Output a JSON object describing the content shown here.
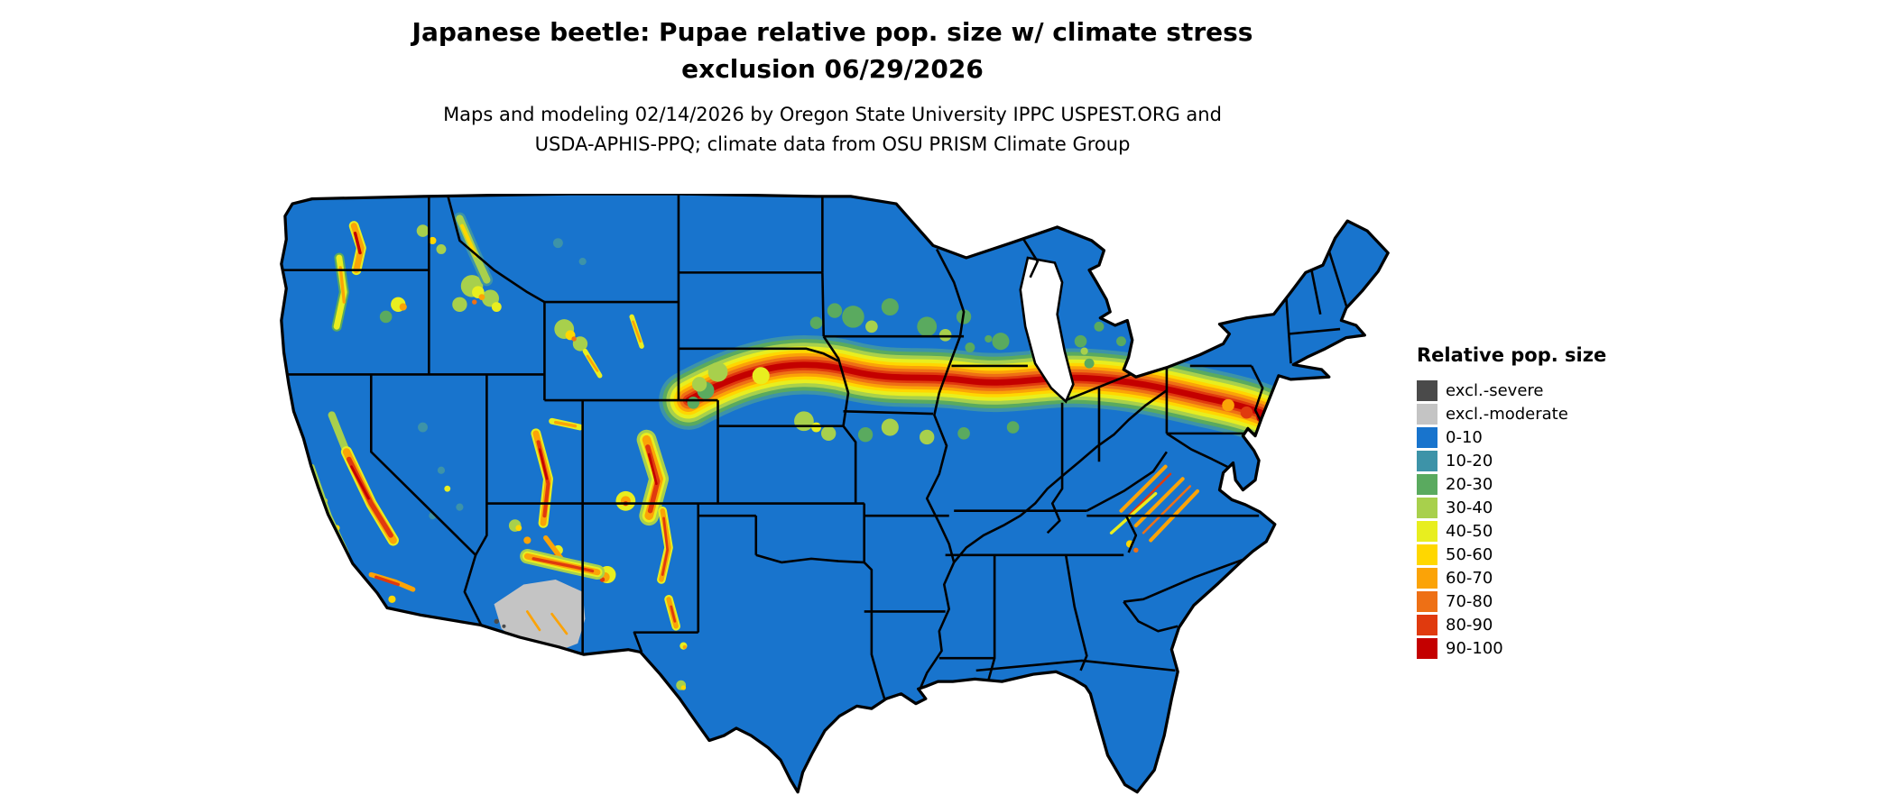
{
  "header": {
    "title_line1": "Japanese beetle: Pupae relative pop. size w/ climate stress",
    "title_line2": "exclusion 06/29/2026",
    "subtitle_line1": "Maps and modeling 02/14/2026 by Oregon State University IPPC USPEST.ORG and",
    "subtitle_line2": "USDA-APHIS-PPQ; climate data from OSU PRISM Climate Group"
  },
  "map": {
    "region": "Continental United States",
    "border_color": "#000000",
    "background_color": "#ffffff"
  },
  "legend": {
    "title": "Relative pop. size",
    "items": [
      {
        "label": "excl.-severe",
        "color": "#4a4a4a"
      },
      {
        "label": "excl.-moderate",
        "color": "#c4c4c4"
      },
      {
        "label": "0-10",
        "color": "#1874cd"
      },
      {
        "label": "10-20",
        "color": "#3d93a8"
      },
      {
        "label": "20-30",
        "color": "#5aaa5f"
      },
      {
        "label": "30-40",
        "color": "#a8d04c"
      },
      {
        "label": "40-50",
        "color": "#e8ee1f"
      },
      {
        "label": "50-60",
        "color": "#ffd700"
      },
      {
        "label": "60-70",
        "color": "#fba307"
      },
      {
        "label": "70-80",
        "color": "#ee7015"
      },
      {
        "label": "80-90",
        "color": "#e03a0e"
      },
      {
        "label": "90-100",
        "color": "#c40000"
      }
    ]
  }
}
